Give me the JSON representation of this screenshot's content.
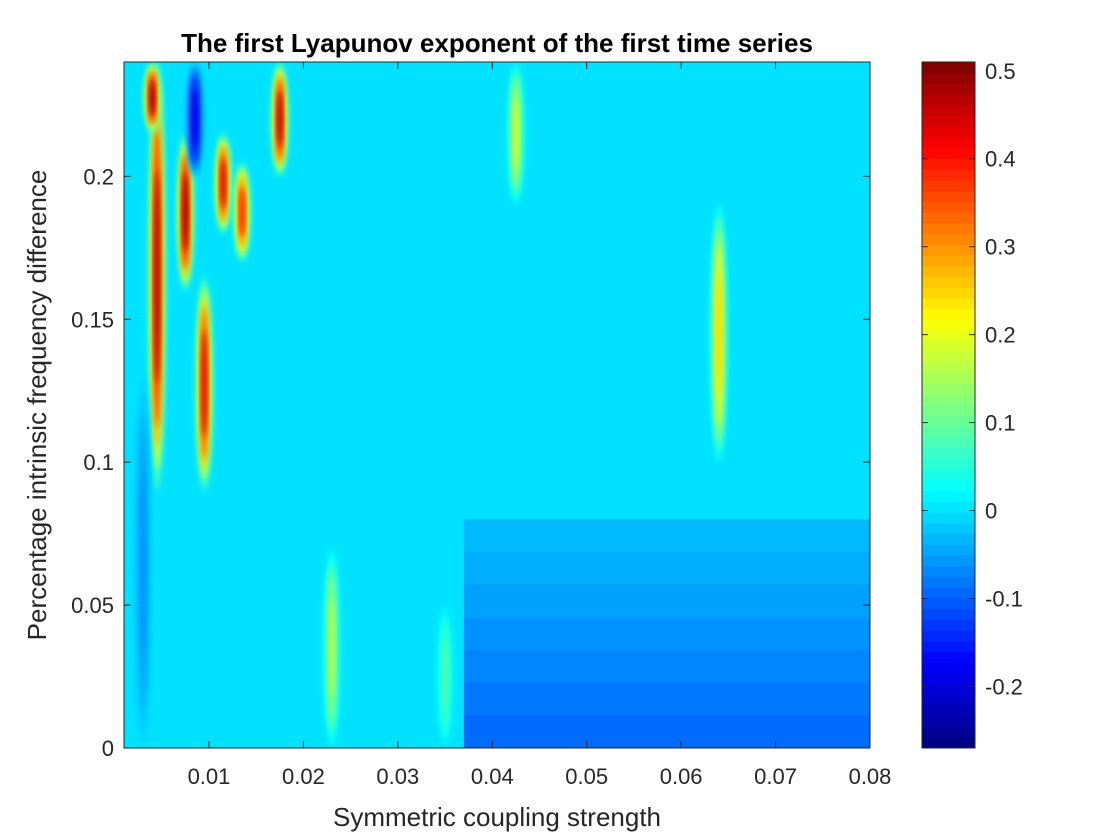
{
  "chart_data": {
    "type": "heatmap",
    "title": "The first Lyapunov exponent of the first time series",
    "xlabel": "Symmetric coupling strength",
    "ylabel": "Percentage intrinsic frequency difference",
    "xlim": [
      0.001,
      0.08
    ],
    "ylim": [
      0,
      0.24
    ],
    "xticks": [
      0.01,
      0.02,
      0.03,
      0.04,
      0.05,
      0.06,
      0.07,
      0.08
    ],
    "xtick_labels": [
      "0.01",
      "0.02",
      "0.03",
      "0.04",
      "0.05",
      "0.06",
      "0.07",
      "0.08"
    ],
    "yticks": [
      0,
      0.05,
      0.1,
      0.15,
      0.2
    ],
    "ytick_labels": [
      "0",
      "0.05",
      "0.1",
      "0.15",
      "0.2"
    ],
    "colormap": "jet",
    "clim": [
      -0.27,
      0.51
    ],
    "colorbar_ticks": [
      -0.2,
      -0.1,
      0,
      0.1,
      0.2,
      0.3,
      0.4,
      0.5
    ],
    "colorbar_tick_labels": [
      "-0.2",
      "-0.1",
      "0",
      "0.1",
      "0.2",
      "0.3",
      "0.4",
      "0.5"
    ],
    "background_value": 0.0,
    "features": [
      {
        "label": "ridge",
        "x": 0.0045,
        "y_from": 0.09,
        "y_to": 0.24,
        "value": 0.49
      },
      {
        "label": "ridge",
        "x": 0.0075,
        "y_from": 0.16,
        "y_to": 0.215,
        "value": 0.5
      },
      {
        "label": "ridge",
        "x": 0.0095,
        "y_from": 0.09,
        "y_to": 0.165,
        "value": 0.45
      },
      {
        "label": "ridge",
        "x": 0.0115,
        "y_from": 0.18,
        "y_to": 0.215,
        "value": 0.45
      },
      {
        "label": "ridge",
        "x": 0.0135,
        "y_from": 0.17,
        "y_to": 0.205,
        "value": 0.4
      },
      {
        "label": "ridge",
        "x": 0.0175,
        "y_from": 0.2,
        "y_to": 0.24,
        "value": 0.48
      },
      {
        "label": "ridge",
        "x": 0.004,
        "y_from": 0.215,
        "y_to": 0.24,
        "value": 0.5
      },
      {
        "label": "trough",
        "x": 0.0085,
        "y_from": 0.2,
        "y_to": 0.24,
        "value": -0.2
      },
      {
        "label": "trough",
        "x": 0.003,
        "y_from": 0.0,
        "y_to": 0.13,
        "value": -0.06
      },
      {
        "label": "ridge",
        "x": 0.023,
        "y_from": 0.0,
        "y_to": 0.07,
        "value": 0.16
      },
      {
        "label": "ridge",
        "x": 0.035,
        "y_from": 0.0,
        "y_to": 0.05,
        "value": 0.08
      },
      {
        "label": "ridge",
        "x": 0.0425,
        "y_from": 0.19,
        "y_to": 0.24,
        "value": 0.18
      },
      {
        "label": "ridge",
        "x": 0.064,
        "y_from": 0.1,
        "y_to": 0.19,
        "value": 0.25
      },
      {
        "label": "plateau",
        "x_from": 0.037,
        "x_to": 0.08,
        "y_from": 0.0,
        "y_to": 0.08,
        "value_top": -0.03,
        "value_bottom": -0.09
      }
    ]
  }
}
